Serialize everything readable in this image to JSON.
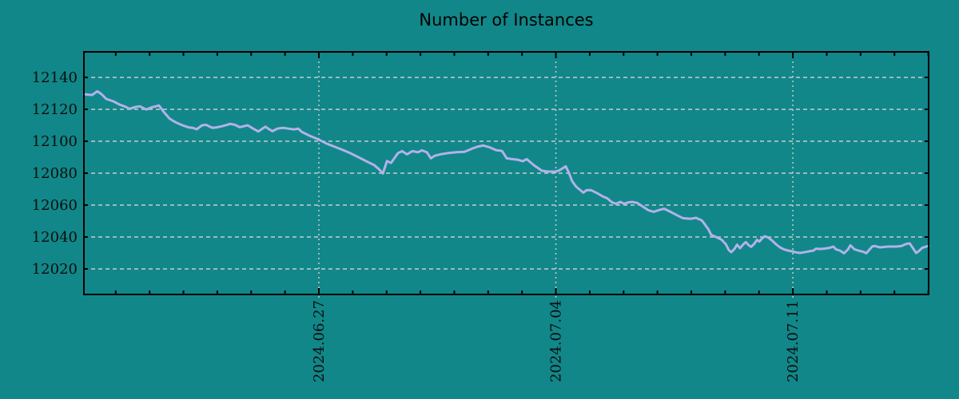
{
  "colors": {
    "background": "#118789",
    "axis": "#000000",
    "text": "#0d0d0d",
    "grid": "#cbcbcb",
    "line": "#b2b2e9"
  },
  "chart_data": {
    "type": "line",
    "title": "Number of Instances",
    "xlabel": "",
    "ylabel": "",
    "legend": "none",
    "grid": {
      "horizontal_style": "dashed",
      "vertical_style": "dotted"
    },
    "x_axis": {
      "kind": "date",
      "unit": "days from left edge of plot",
      "start_day": 0,
      "end_day": 24.95,
      "major_ticks": [
        {
          "day": 6.94,
          "label": "2024.06.27"
        },
        {
          "day": 13.94,
          "label": "2024.07.04"
        },
        {
          "day": 20.94,
          "label": "2024.07.11"
        }
      ],
      "minor_tick_first_day": 0.94,
      "minor_tick_step_days": 1
    },
    "y_axis": {
      "min": 12004,
      "max": 12156,
      "ticks": [
        12140,
        12120,
        12100,
        12080,
        12060,
        12040,
        12020
      ]
    },
    "series": [
      {
        "name": "Number of Instances",
        "points": [
          [
            0.0,
            12129.5
          ],
          [
            0.12,
            12129.2
          ],
          [
            0.24,
            12129.0
          ],
          [
            0.4,
            12131.3
          ],
          [
            0.52,
            12129.5
          ],
          [
            0.66,
            12126.5
          ],
          [
            0.87,
            12125.0
          ],
          [
            1.06,
            12122.9
          ],
          [
            1.23,
            12121.6
          ],
          [
            1.35,
            12120.3
          ],
          [
            1.49,
            12121.3
          ],
          [
            1.65,
            12121.9
          ],
          [
            1.84,
            12119.9
          ],
          [
            2.01,
            12121.3
          ],
          [
            2.22,
            12122.4
          ],
          [
            2.36,
            12118.3
          ],
          [
            2.53,
            12114.2
          ],
          [
            2.67,
            12112.3
          ],
          [
            2.81,
            12110.9
          ],
          [
            2.95,
            12109.7
          ],
          [
            3.09,
            12108.7
          ],
          [
            3.23,
            12108.3
          ],
          [
            3.33,
            12107.5
          ],
          [
            3.49,
            12110.0
          ],
          [
            3.61,
            12110.3
          ],
          [
            3.73,
            12109.0
          ],
          [
            3.8,
            12108.4
          ],
          [
            3.92,
            12108.7
          ],
          [
            4.08,
            12109.4
          ],
          [
            4.23,
            12110.3
          ],
          [
            4.32,
            12110.9
          ],
          [
            4.46,
            12110.3
          ],
          [
            4.6,
            12108.8
          ],
          [
            4.84,
            12110.0
          ],
          [
            5.0,
            12107.9
          ],
          [
            5.15,
            12106.1
          ],
          [
            5.36,
            12109.1
          ],
          [
            5.48,
            12107.4
          ],
          [
            5.57,
            12106.3
          ],
          [
            5.71,
            12107.9
          ],
          [
            5.88,
            12108.4
          ],
          [
            6.04,
            12107.9
          ],
          [
            6.21,
            12107.4
          ],
          [
            6.33,
            12107.9
          ],
          [
            6.44,
            12105.8
          ],
          [
            6.68,
            12103.3
          ],
          [
            6.92,
            12101.2
          ],
          [
            7.15,
            12098.7
          ],
          [
            7.39,
            12096.7
          ],
          [
            7.63,
            12094.7
          ],
          [
            7.86,
            12092.6
          ],
          [
            8.1,
            12090.1
          ],
          [
            8.33,
            12087.6
          ],
          [
            8.57,
            12085.1
          ],
          [
            8.71,
            12082.6
          ],
          [
            8.83,
            12079.8
          ],
          [
            8.95,
            12087.6
          ],
          [
            9.07,
            12086.4
          ],
          [
            9.28,
            12092.6
          ],
          [
            9.4,
            12093.8
          ],
          [
            9.54,
            12091.8
          ],
          [
            9.7,
            12093.8
          ],
          [
            9.87,
            12093.1
          ],
          [
            9.98,
            12094.3
          ],
          [
            10.13,
            12093.1
          ],
          [
            10.25,
            12089.3
          ],
          [
            10.36,
            12090.9
          ],
          [
            10.53,
            12091.8
          ],
          [
            10.76,
            12092.6
          ],
          [
            11.0,
            12093.1
          ],
          [
            11.24,
            12093.4
          ],
          [
            11.47,
            12095.4
          ],
          [
            11.64,
            12096.7
          ],
          [
            11.8,
            12097.3
          ],
          [
            11.97,
            12096.3
          ],
          [
            12.18,
            12094.4
          ],
          [
            12.35,
            12093.9
          ],
          [
            12.49,
            12089.3
          ],
          [
            12.65,
            12088.8
          ],
          [
            12.82,
            12088.4
          ],
          [
            12.96,
            12087.5
          ],
          [
            13.08,
            12088.8
          ],
          [
            13.29,
            12085.0
          ],
          [
            13.53,
            12081.5
          ],
          [
            13.71,
            12081.0
          ],
          [
            13.93,
            12081.0
          ],
          [
            14.05,
            12081.8
          ],
          [
            14.23,
            12084.3
          ],
          [
            14.33,
            12080.0
          ],
          [
            14.42,
            12075.0
          ],
          [
            14.54,
            12071.5
          ],
          [
            14.75,
            12067.8
          ],
          [
            14.85,
            12069.4
          ],
          [
            14.99,
            12069.3
          ],
          [
            15.18,
            12067.2
          ],
          [
            15.32,
            12065.5
          ],
          [
            15.46,
            12064.2
          ],
          [
            15.6,
            12061.7
          ],
          [
            15.72,
            12060.8
          ],
          [
            15.84,
            12062.0
          ],
          [
            15.96,
            12060.8
          ],
          [
            16.08,
            12061.7
          ],
          [
            16.19,
            12062.0
          ],
          [
            16.34,
            12061.4
          ],
          [
            16.5,
            12059.2
          ],
          [
            16.67,
            12056.8
          ],
          [
            16.83,
            12055.8
          ],
          [
            16.97,
            12056.8
          ],
          [
            17.14,
            12057.7
          ],
          [
            17.37,
            12055.3
          ],
          [
            17.54,
            12053.4
          ],
          [
            17.68,
            12051.9
          ],
          [
            17.92,
            12051.4
          ],
          [
            18.08,
            12052.0
          ],
          [
            18.25,
            12050.4
          ],
          [
            18.34,
            12047.9
          ],
          [
            18.44,
            12045.0
          ],
          [
            18.53,
            12041.3
          ],
          [
            18.65,
            12040.2
          ],
          [
            18.74,
            12039.3
          ],
          [
            18.84,
            12038.2
          ],
          [
            18.96,
            12035.5
          ],
          [
            19.05,
            12031.8
          ],
          [
            19.12,
            12030.5
          ],
          [
            19.22,
            12032.7
          ],
          [
            19.29,
            12035.2
          ],
          [
            19.38,
            12033.0
          ],
          [
            19.48,
            12035.5
          ],
          [
            19.55,
            12036.8
          ],
          [
            19.64,
            12034.8
          ],
          [
            19.71,
            12033.8
          ],
          [
            19.81,
            12036.0
          ],
          [
            19.88,
            12038.2
          ],
          [
            19.95,
            12037.2
          ],
          [
            20.04,
            12039.3
          ],
          [
            20.11,
            12040.5
          ],
          [
            20.21,
            12039.7
          ],
          [
            20.33,
            12037.7
          ],
          [
            20.44,
            12035.5
          ],
          [
            20.56,
            12033.5
          ],
          [
            20.68,
            12032.2
          ],
          [
            20.8,
            12031.5
          ],
          [
            20.92,
            12031.0
          ],
          [
            21.03,
            12030.4
          ],
          [
            21.15,
            12030.0
          ],
          [
            21.32,
            12030.6
          ],
          [
            21.46,
            12031.2
          ],
          [
            21.55,
            12031.5
          ],
          [
            21.62,
            12032.7
          ],
          [
            21.74,
            12032.5
          ],
          [
            21.86,
            12032.7
          ],
          [
            22.02,
            12033.2
          ],
          [
            22.14,
            12034.0
          ],
          [
            22.21,
            12032.3
          ],
          [
            22.33,
            12031.5
          ],
          [
            22.45,
            12029.8
          ],
          [
            22.57,
            12032.3
          ],
          [
            22.64,
            12034.8
          ],
          [
            22.76,
            12032.3
          ],
          [
            22.88,
            12031.5
          ],
          [
            23.04,
            12030.6
          ],
          [
            23.11,
            12029.8
          ],
          [
            23.28,
            12034.0
          ],
          [
            23.35,
            12034.4
          ],
          [
            23.51,
            12033.5
          ],
          [
            23.75,
            12034.0
          ],
          [
            23.99,
            12034.0
          ],
          [
            24.15,
            12034.4
          ],
          [
            24.29,
            12035.7
          ],
          [
            24.39,
            12036.0
          ],
          [
            24.51,
            12032.3
          ],
          [
            24.58,
            12030.0
          ],
          [
            24.65,
            12031.0
          ],
          [
            24.76,
            12033.2
          ],
          [
            24.88,
            12034.0
          ],
          [
            24.95,
            12034.5
          ]
        ]
      }
    ]
  }
}
